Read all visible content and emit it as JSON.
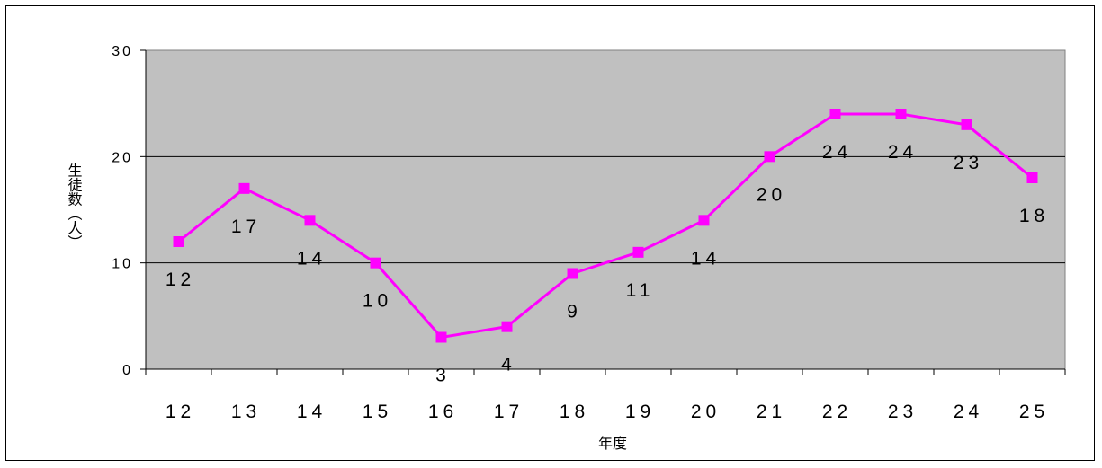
{
  "chart_data": {
    "type": "line",
    "title": "",
    "xlabel": "年度",
    "ylabel": "生徒数（人）",
    "categories": [
      "12",
      "13",
      "14",
      "15",
      "16",
      "17",
      "18",
      "19",
      "20",
      "21",
      "22",
      "23",
      "24",
      "25"
    ],
    "series": [
      {
        "values": [
          12,
          17,
          14,
          10,
          3,
          4,
          9,
          11,
          14,
          20,
          24,
          24,
          23,
          18
        ]
      }
    ],
    "ylim": [
      0,
      30
    ],
    "yticks": [
      "0",
      "10",
      "20",
      "30"
    ],
    "grid": true,
    "legend": "none",
    "colors": {
      "line": "#ff00ff",
      "plot_bg": "#c0c0c0",
      "grid": "#000000"
    }
  }
}
